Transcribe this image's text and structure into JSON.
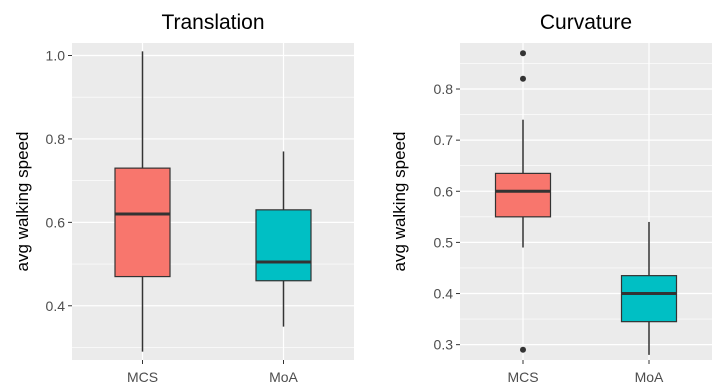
{
  "chart_data": [
    {
      "type": "boxplot",
      "title": "Translation",
      "xlabel": "",
      "ylabel": "avg walking speed",
      "categories": [
        "MCS",
        "MoA"
      ],
      "yticks": [
        0.4,
        0.6,
        0.8,
        1.0
      ],
      "ytick_labels": [
        "0.4",
        "0.6",
        "0.8",
        "1.0"
      ],
      "ylim": [
        0.27,
        1.03
      ],
      "grid": true,
      "legend": "none",
      "boxes": [
        {
          "category": "MCS",
          "color": "#F8766D",
          "whisker_low": 0.29,
          "q1": 0.47,
          "median": 0.62,
          "q3": 0.73,
          "whisker_high": 1.01,
          "outliers": []
        },
        {
          "category": "MoA",
          "color": "#00BFC4",
          "whisker_low": 0.35,
          "q1": 0.46,
          "median": 0.505,
          "q3": 0.63,
          "whisker_high": 0.77,
          "outliers": []
        }
      ]
    },
    {
      "type": "boxplot",
      "title": "Curvature",
      "xlabel": "",
      "ylabel": "avg walking speed",
      "categories": [
        "MCS",
        "MoA"
      ],
      "yticks": [
        0.3,
        0.4,
        0.5,
        0.6,
        0.7,
        0.8
      ],
      "ytick_labels": [
        "0.3",
        "0.4",
        "0.5",
        "0.6",
        "0.7",
        "0.8"
      ],
      "ylim": [
        0.27,
        0.89
      ],
      "grid": true,
      "legend": "none",
      "boxes": [
        {
          "category": "MCS",
          "color": "#F8766D",
          "whisker_low": 0.49,
          "q1": 0.55,
          "median": 0.6,
          "q3": 0.635,
          "whisker_high": 0.74,
          "outliers": [
            0.29,
            0.82,
            0.87
          ]
        },
        {
          "category": "MoA",
          "color": "#00BFC4",
          "whisker_low": 0.28,
          "q1": 0.345,
          "median": 0.4,
          "q3": 0.435,
          "whisker_high": 0.54,
          "outliers": []
        }
      ]
    }
  ],
  "colors": {
    "panel_background": "#EBEBEB",
    "grid_major": "#FFFFFF",
    "box_line": "#333333",
    "outlier": "#333333"
  }
}
